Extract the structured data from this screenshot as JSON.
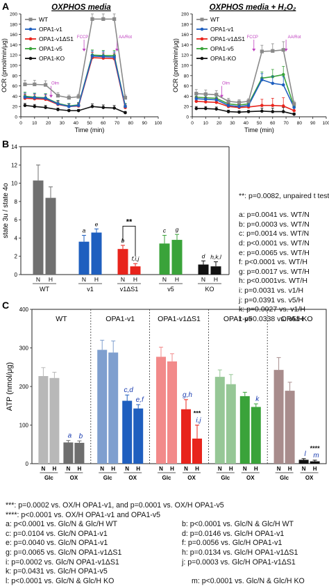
{
  "panelA": {
    "label": "A",
    "legend": [
      {
        "name": "WT",
        "color": "#8a8a8a"
      },
      {
        "name": "OPA1-v1",
        "color": "#1f5fbf"
      },
      {
        "name": "OPA1-v1ΔS1",
        "color": "#e8241c"
      },
      {
        "name": "OPA1-v5",
        "color": "#3aa33a"
      },
      {
        "name": "OPA1-KO",
        "color": "#111111"
      }
    ],
    "charts": [
      {
        "title": "OXPHOS media",
        "xlabel": "Time (min)",
        "ylabel": "OCR (pmol/min/μg)",
        "xlim": [
          0,
          100
        ],
        "ylim": [
          0,
          200
        ],
        "xticks": [
          0,
          10,
          20,
          30,
          40,
          50,
          60,
          70,
          80,
          90,
          100
        ],
        "yticks": [
          0,
          20,
          40,
          60,
          80,
          100,
          120,
          140,
          160,
          180,
          200
        ],
        "injections": [
          {
            "label": "Olm",
            "x": 22
          },
          {
            "label": "FCCP",
            "x": 46
          },
          {
            "label": "AA/Rot",
            "x": 70
          }
        ],
        "x": [
          3,
          10,
          18,
          27,
          35,
          42,
          52,
          60,
          68,
          76
        ],
        "series": [
          {
            "name": "WT",
            "color": "#8a8a8a",
            "y": [
              63,
              63,
              62,
              41,
              37,
              39,
              190,
              190,
              190,
              37
            ]
          },
          {
            "name": "OPA1-v1",
            "color": "#1f5fbf",
            "y": [
              38,
              37,
              36,
              25,
              20,
              22,
              118,
              117,
              116,
              20
            ]
          },
          {
            "name": "OPA1-v1ΔS1",
            "color": "#e8241c",
            "y": [
              36,
              35,
              34,
              24,
              20,
              21,
              115,
              114,
              113,
              18
            ]
          },
          {
            "name": "OPA1-v5",
            "color": "#3aa33a",
            "y": [
              40,
              38,
              37,
              26,
              21,
              23,
              120,
              119,
              119,
              21
            ]
          },
          {
            "name": "OPA1-KO",
            "color": "#111111",
            "y": [
              22,
              20,
              18,
              14,
              12,
              12,
              20,
              18,
              17,
              8
            ]
          }
        ],
        "errors": [
          8,
          8,
          8,
          6,
          5,
          5,
          10,
          10,
          10,
          5
        ]
      },
      {
        "title": "OXPHOS media + H₂O₂",
        "xlabel": "Time (min)",
        "ylabel": "OCR (pmol/min/μg)",
        "xlim": [
          0,
          100
        ],
        "ylim": [
          0,
          200
        ],
        "xticks": [
          0,
          10,
          20,
          30,
          40,
          50,
          60,
          70,
          80,
          90,
          100
        ],
        "yticks": [
          0,
          20,
          40,
          60,
          80,
          100,
          120,
          140,
          160,
          180,
          200
        ],
        "injections": [
          {
            "label": "Olm",
            "x": 22
          },
          {
            "label": "FCCP",
            "x": 46
          },
          {
            "label": "AA/Rot",
            "x": 70
          }
        ],
        "x": [
          3,
          10,
          18,
          27,
          35,
          42,
          52,
          60,
          68,
          76
        ],
        "series": [
          {
            "name": "WT",
            "color": "#8a8a8a",
            "y": [
              45,
              44,
              43,
              30,
              28,
              30,
              127,
              128,
              130,
              25
            ]
          },
          {
            "name": "OPA1-v1",
            "color": "#1f5fbf",
            "y": [
              35,
              34,
              33,
              22,
              20,
              22,
              72,
              65,
              62,
              18
            ]
          },
          {
            "name": "OPA1-v1ΔS1",
            "color": "#e8241c",
            "y": [
              30,
              29,
              28,
              20,
              18,
              19,
              22,
              22,
              21,
              12
            ]
          },
          {
            "name": "OPA1-v5",
            "color": "#3aa33a",
            "y": [
              38,
              37,
              36,
              25,
              23,
              25,
              75,
              78,
              82,
              20
            ]
          },
          {
            "name": "OPA1-KO",
            "color": "#111111",
            "y": [
              16,
              16,
              15,
              10,
              9,
              10,
              11,
              10,
              10,
              5
            ]
          }
        ],
        "errors": [
          8,
          8,
          8,
          6,
          5,
          5,
          12,
          14,
          16,
          5
        ]
      }
    ]
  },
  "panelB": {
    "label": "B",
    "ylabel": "state 3u / state 4o",
    "ylim": [
      0,
      14
    ],
    "yticks": [
      0,
      2,
      4,
      6,
      8,
      10,
      12,
      14
    ],
    "groups": [
      "WT",
      "v1",
      "v1ΔS1",
      "v5",
      "KO"
    ],
    "bar_labels": [
      "N",
      "H"
    ],
    "chart_data": {
      "type": "bar",
      "categories": [
        "WT/N",
        "WT/H",
        "v1/N",
        "v1/H",
        "v1ΔS1/N",
        "v1ΔS1/H",
        "v5/N",
        "v5/H",
        "KO/N",
        "KO/H"
      ],
      "values": [
        10.3,
        8.4,
        3.6,
        4.6,
        2.8,
        0.9,
        3.4,
        3.8,
        1.1,
        0.9
      ],
      "errors": [
        1.7,
        1.2,
        0.7,
        0.4,
        0.4,
        0.3,
        0.9,
        0.6,
        0.4,
        0.5
      ],
      "colors": [
        "#707070",
        "#707070",
        "#1f5fbf",
        "#1f5fbf",
        "#e8241c",
        "#e8241c",
        "#3aa33a",
        "#3aa33a",
        "#111111",
        "#111111"
      ],
      "letters": [
        "",
        "",
        "a",
        "e",
        "b",
        "f,i,j",
        "c",
        "g",
        "d",
        "h,k,l"
      ]
    },
    "bracket_label": "**",
    "notes": [
      "**: p=0.0082, unpaired t test",
      "",
      "a: p=0.0041 vs. WT/N",
      "b: p=0.0003 vs. WT/N",
      "c: p=0.0014 vs. WT/N",
      "d: p<0.0001 vs. WT/N",
      "e: p=0.0065 vs. WT/H",
      "f: p<0.0001 vs. WT/H",
      "g: p=0.0017 vs. WT/H",
      "h: p<0.0001vs. WT/H",
      "i: p=0.0031 vs. v1/H",
      "j: p=0.0391 vs. v5/H",
      "k: p=0.0027 vs. v1/H",
      "l: p=0.0338 vs. v5/H"
    ]
  },
  "panelC": {
    "label": "C",
    "ylabel": "ATP (nmol/μg)",
    "ylim": [
      0,
      400
    ],
    "yticks": [
      0,
      100,
      200,
      300,
      400
    ],
    "groups": [
      "WT",
      "OPA1-v1",
      "OPA1-v1ΔS1",
      "OPA1-v5",
      "OPA1-KO"
    ],
    "bar_labels": [
      "N",
      "H",
      "N",
      "H"
    ],
    "media_labels": [
      "Glc",
      "OX"
    ],
    "chart_data": {
      "type": "bar",
      "categories": [
        "WT Glc/N",
        "WT Glc/H",
        "WT OX/N",
        "WT OX/H",
        "OPA1-v1 Glc/N",
        "OPA1-v1 Glc/H",
        "OPA1-v1 OX/N",
        "OPA1-v1 OX/H",
        "OPA1-v1ΔS1 Glc/N",
        "OPA1-v1ΔS1 Glc/H",
        "OPA1-v1ΔS1 OX/N",
        "OPA1-v1ΔS1 OX/H",
        "OPA1-v5 Glc/N",
        "OPA1-v5 Glc/H",
        "OPA1-v5 OX/N",
        "OPA1-v5 OX/H",
        "OPA1-KO Glc/N",
        "OPA1-KO Glc/H",
        "OPA1-KO OX/N",
        "OPA1-KO OX/H"
      ],
      "values": [
        227,
        222,
        55,
        54,
        295,
        288,
        163,
        143,
        277,
        265,
        141,
        65,
        225,
        206,
        175,
        147,
        243,
        189,
        10,
        6
      ],
      "errors": [
        22,
        15,
        5,
        5,
        25,
        30,
        15,
        10,
        25,
        20,
        25,
        35,
        18,
        25,
        10,
        8,
        32,
        22,
        3,
        3
      ],
      "colors": [
        "#b8b8b8",
        "#b8b8b8",
        "#6e6e6e",
        "#6e6e6e",
        "#7f9fcf",
        "#7f9fcf",
        "#1f5fbf",
        "#1f5fbf",
        "#f28a8a",
        "#f28a8a",
        "#e8241c",
        "#e8241c",
        "#96c796",
        "#96c796",
        "#3aa33a",
        "#3aa33a",
        "#a88c8c",
        "#a88c8c",
        "#111111",
        "#111111"
      ],
      "letters": [
        "",
        "",
        "a",
        "b",
        "",
        "",
        "c,d",
        "e,f",
        "",
        "",
        "g,h",
        "***\ni,j",
        "",
        "",
        "",
        "k",
        "",
        "",
        "l",
        "****\nm"
      ]
    },
    "footnotes": [
      "***: p=0.0002 vs. OX/H OPA1-v1, and p=0.0001 vs. OX/H OPA1-v5",
      "****: p<0.0001 vs. OX/H OPA1-v1 and OPA1-v5"
    ],
    "footnote_pairs": [
      [
        "a: p<0.0001 vs. Glc/N & Glc/H WT",
        "b: p<0.0001 vs. Glc/N & Glc/H WT"
      ],
      [
        "c: p=0.0104 vs. Glc/N OPA1-v1",
        "d: p=0.0146 vs. Glc/H OPA1-v1"
      ],
      [
        "e: p=0.0040 vs. Glc/N OPA1-v1",
        "f: p=0.0056 vs. Glc/H OPA1-v1"
      ],
      [
        "g: p=0.0065 vs. Glc/N OPA1-v1ΔS1",
        "h: p=0.0134 vs. Glc/H OPA1-v1ΔS1"
      ],
      [
        "i: p=0.0002 vs. Glc/N OPA1-v1ΔS1",
        "j: p=0.0003 vs. Glc/H OPA1-v1ΔS1"
      ],
      [
        "k: p=0.0431 vs. Glc/H OPA1-v5",
        ""
      ],
      [
        "l: p<0.0001 vs. Glc/N & Glc/H KO",
        "m: p<0.0001 vs. Glc/N & Glc/H KO"
      ]
    ]
  }
}
